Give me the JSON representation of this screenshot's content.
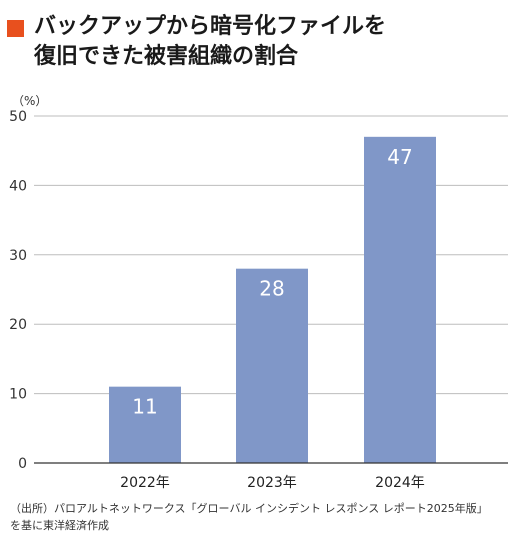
{
  "header": {
    "title_line1": "バックアップから暗号化ファイルを",
    "title_line2": "復旧できた被害組織の割合",
    "accent_color": "#e8501e"
  },
  "chart_data": {
    "type": "bar",
    "categories": [
      "2022年",
      "2023年",
      "2024年"
    ],
    "values": [
      11,
      28,
      47
    ],
    "data_labels": [
      "11",
      "28",
      "47"
    ],
    "ylabel": "（%）",
    "ylim": [
      0,
      50
    ],
    "yticks": [
      0,
      10,
      20,
      30,
      40,
      50
    ],
    "grid": true,
    "bar_color": "#8097c8",
    "label_color": "#ffffff"
  },
  "footer": {
    "source_line1": "（出所）パロアルトネットワークス「グローバル インシデント レスポンス レポート2025年版」",
    "source_line2": "を基に東洋経済作成"
  }
}
